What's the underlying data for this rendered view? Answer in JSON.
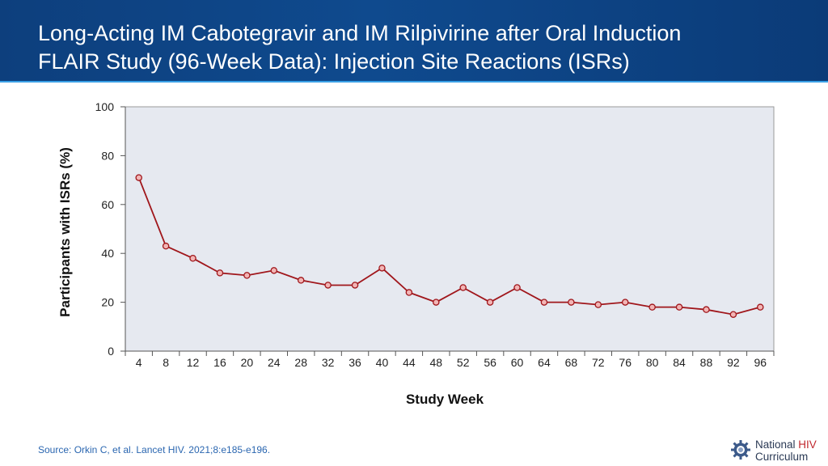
{
  "header": {
    "title_line1": "Long-Acting IM Cabotegravir and IM Rilpivirine after Oral Induction",
    "title_line2": "FLAIR Study (96-Week Data): Injection Site Reactions (ISRs)",
    "background_color": "#0f4a8e"
  },
  "chart_data": {
    "type": "line",
    "title": "",
    "xlabel": "Study Week",
    "ylabel": "Participants with ISRs (%)",
    "x": [
      4,
      8,
      12,
      16,
      20,
      24,
      28,
      32,
      36,
      40,
      44,
      48,
      52,
      56,
      60,
      64,
      68,
      72,
      76,
      80,
      84,
      88,
      92,
      96
    ],
    "series": [
      {
        "values": [
          71,
          43,
          38,
          32,
          31,
          33,
          29,
          27,
          27,
          34,
          24,
          20,
          26,
          20,
          26,
          20,
          20,
          19,
          20,
          18,
          18,
          17,
          15,
          18
        ],
        "color": "#a0161b",
        "marker_fill": "#f2b5b5"
      }
    ],
    "ylim": [
      0,
      100
    ],
    "yticks": [
      0,
      20,
      40,
      60,
      80,
      100
    ],
    "grid": false,
    "plot_background": "#e6e9f0",
    "legend": "none"
  },
  "footer": {
    "source": "Source: Orkin C, et al. Lancet HIV. 2021;8:e185-e196.",
    "logo_line1_a": "National ",
    "logo_line1_b": "HIV",
    "logo_line2": "Curriculum"
  }
}
